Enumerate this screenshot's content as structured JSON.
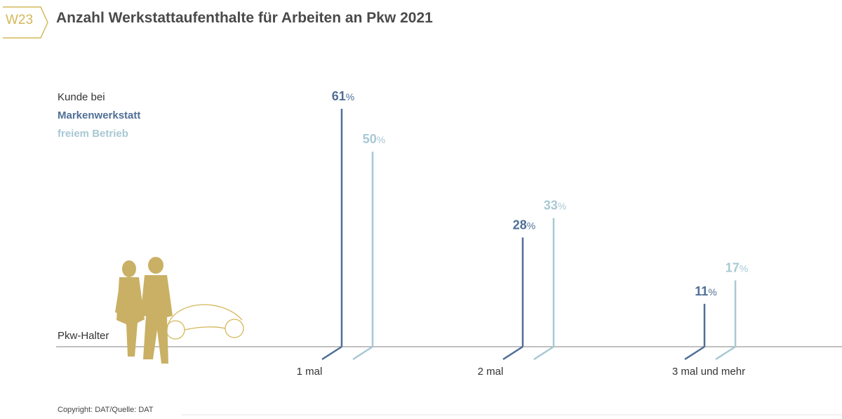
{
  "header": {
    "badge": "W23",
    "title": "Anzahl Werkstattaufenthalte für Arbeiten an Pkw 2021"
  },
  "legend": {
    "intro": "Kunde bei",
    "series_1": "Markenwerkstatt",
    "series_2": "freiem Betrieb"
  },
  "baseline_label": "Pkw-Halter",
  "footer": {
    "copyright": "Copyright: DAT/Quelle: DAT"
  },
  "colors": {
    "series_1": "#4f6f96",
    "series_2": "#a8c8d4",
    "accent": "#d4b85a",
    "axis": "#9a9a9a"
  },
  "icons": [
    "couple-silhouette-icon",
    "car-outline-icon"
  ],
  "chart_data": {
    "type": "bar",
    "title": "Anzahl Werkstattaufenthalte für Arbeiten an Pkw 2021",
    "categories": [
      "1 mal",
      "2 mal",
      "3 mal und mehr"
    ],
    "series": [
      {
        "name": "Markenwerkstatt",
        "values": [
          61,
          28,
          11
        ]
      },
      {
        "name": "freiem Betrieb",
        "values": [
          50,
          33,
          17
        ]
      }
    ],
    "unit": "%",
    "ylim": [
      0,
      61
    ],
    "grid": false
  }
}
